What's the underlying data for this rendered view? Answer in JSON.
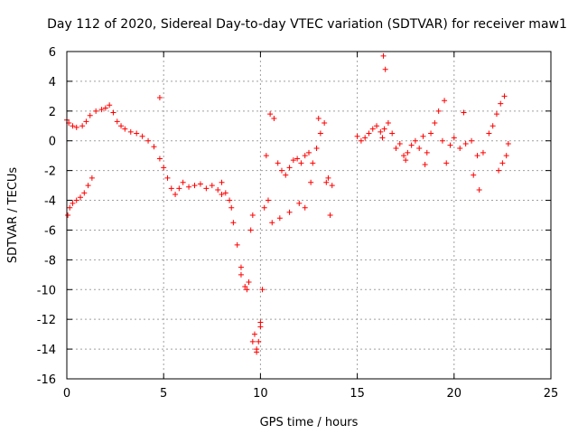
{
  "chart_data": {
    "type": "scatter",
    "title": "Day 112 of 2020, Sidereal Day-to-day VTEC variation (SDTVAR) for receiver maw1",
    "xlabel": "GPS time / hours",
    "ylabel": "SDTVAR / TECUs",
    "xlim": [
      0,
      25
    ],
    "ylim": [
      -16,
      6
    ],
    "xticks": [
      "0",
      "5",
      "10",
      "15",
      "20",
      "25"
    ],
    "yticks": [
      "6",
      "4",
      "2",
      "0",
      "-2",
      "-4",
      "-6",
      "-8",
      "-10",
      "-12",
      "-14",
      "-16"
    ],
    "grid": true,
    "marker": "+",
    "series": [
      {
        "name": "maw1",
        "color": "#ff0000",
        "x": [
          0.0,
          0.1,
          0.3,
          0.5,
          0.8,
          1.0,
          1.2,
          1.5,
          1.8,
          2.0,
          2.2,
          2.4,
          2.6,
          2.8,
          3.0,
          3.3,
          3.6,
          3.9,
          4.2,
          4.5,
          4.8,
          5.0,
          5.2,
          5.4,
          5.6,
          5.8,
          6.0,
          6.3,
          6.6,
          6.9,
          7.2,
          7.5,
          7.8,
          8.0,
          8.2,
          8.4,
          8.6,
          8.8,
          9.0,
          9.2,
          9.4,
          9.5,
          9.6,
          9.7,
          9.8,
          9.9,
          10.0,
          10.1,
          10.3,
          10.5,
          10.7,
          10.9,
          11.1,
          11.3,
          11.5,
          11.7,
          11.9,
          12.1,
          12.3,
          12.5,
          12.7,
          12.9,
          13.1,
          13.3,
          13.5,
          13.7,
          0.05,
          0.15,
          0.3,
          0.5,
          0.7,
          0.9,
          1.1,
          1.3,
          4.8,
          8.0,
          8.5,
          9.0,
          9.3,
          9.6,
          9.8,
          10.0,
          10.2,
          10.4,
          10.6,
          11.0,
          11.5,
          12.0,
          12.3,
          12.6,
          13.0,
          13.4,
          13.6,
          15.0,
          15.2,
          15.4,
          15.6,
          15.8,
          16.0,
          16.2,
          16.3,
          16.4,
          16.6,
          16.8,
          17.0,
          17.2,
          17.4,
          17.6,
          17.8,
          18.0,
          18.2,
          18.4,
          18.6,
          18.8,
          19.0,
          19.2,
          19.4,
          19.6,
          19.8,
          20.0,
          20.3,
          20.6,
          20.9,
          21.2,
          21.5,
          21.8,
          22.0,
          22.2,
          22.4,
          22.6,
          22.8,
          16.35,
          16.45,
          17.5,
          18.5,
          19.5,
          20.5,
          21.0,
          21.3,
          22.3,
          22.5,
          22.7
        ],
        "y": [
          1.4,
          1.2,
          1.0,
          0.9,
          1.0,
          1.3,
          1.7,
          2.0,
          2.1,
          2.2,
          2.4,
          1.9,
          1.3,
          1.0,
          0.8,
          0.6,
          0.5,
          0.3,
          0.0,
          -0.4,
          -1.2,
          -1.8,
          -2.5,
          -3.2,
          -3.6,
          -3.2,
          -2.8,
          -3.1,
          -3.0,
          -2.9,
          -3.2,
          -3.0,
          -3.3,
          -3.6,
          -3.5,
          -4.0,
          -5.5,
          -7.0,
          -8.5,
          -9.8,
          -9.5,
          -6.0,
          -5.0,
          -13.0,
          -14.0,
          -13.5,
          -12.2,
          -10.0,
          -1.0,
          1.8,
          1.5,
          -1.5,
          -2.0,
          -2.3,
          -1.8,
          -1.3,
          -1.2,
          -1.5,
          -1.0,
          -0.8,
          -1.5,
          -0.5,
          0.5,
          1.2,
          -2.5,
          -3.0,
          -5.0,
          -4.5,
          -4.2,
          -4.0,
          -3.8,
          -3.5,
          -3.0,
          -2.5,
          2.9,
          -2.8,
          -4.5,
          -9.0,
          -10.0,
          -13.5,
          -14.2,
          -12.5,
          -4.5,
          -4.0,
          -5.5,
          -5.2,
          -4.8,
          -4.2,
          -4.5,
          -2.8,
          1.5,
          -2.8,
          -5.0,
          0.3,
          0.0,
          0.2,
          0.5,
          0.8,
          1.0,
          0.6,
          0.2,
          0.8,
          1.2,
          0.5,
          -0.5,
          -0.2,
          -1.0,
          -0.8,
          -0.3,
          0.0,
          -0.5,
          0.3,
          -0.8,
          0.5,
          1.2,
          2.0,
          0.0,
          -1.5,
          -0.3,
          0.2,
          -0.5,
          -0.2,
          0.0,
          -1.0,
          -0.8,
          0.5,
          1.0,
          1.8,
          2.5,
          3.0,
          -0.2,
          5.7,
          4.8,
          -1.3,
          -1.6,
          2.7,
          1.9,
          -2.3,
          -3.3,
          -2.0,
          -1.5,
          -1.0
        ]
      }
    ]
  }
}
